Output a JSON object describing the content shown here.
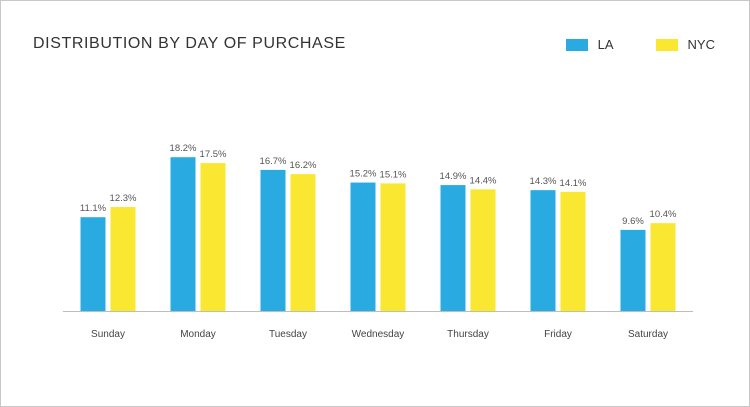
{
  "chart_data": {
    "type": "bar",
    "title": "DISTRIBUTION BY DAY OF PURCHASE",
    "categories": [
      "Sunday",
      "Monday",
      "Tuesday",
      "Wednesday",
      "Thursday",
      "Friday",
      "Saturday"
    ],
    "series": [
      {
        "name": "LA",
        "color": "#29abe2",
        "values": [
          11.1,
          18.2,
          16.7,
          15.2,
          14.9,
          14.3,
          9.6
        ],
        "labels": [
          "11.1%",
          "18.2%",
          "16.7%",
          "15.2%",
          "14.9%",
          "14.3%",
          "9.6%"
        ]
      },
      {
        "name": "NYC",
        "color": "#f9e732",
        "values": [
          12.3,
          17.5,
          16.2,
          15.1,
          14.4,
          14.1,
          10.4
        ],
        "labels": [
          "12.3%",
          "17.5%",
          "16.2%",
          "15.1%",
          "14.4%",
          "14.1%",
          "10.4%"
        ]
      }
    ],
    "ylim": [
      0,
      20
    ],
    "grid": false,
    "legend_position": "top-right"
  }
}
